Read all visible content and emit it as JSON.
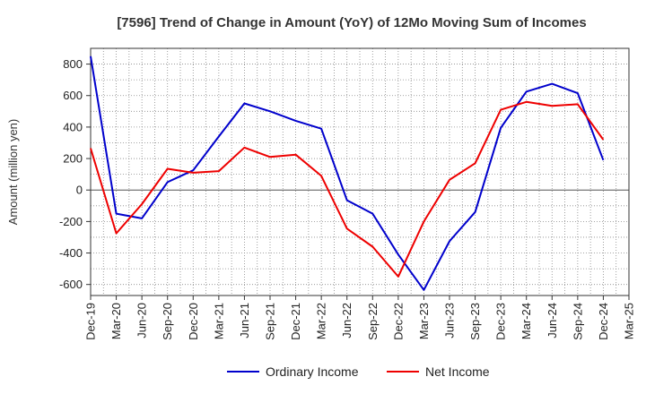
{
  "chart_data": {
    "type": "line",
    "title": "[7596]  Trend of Change in Amount (YoY) of 12Mo Moving Sum of Incomes",
    "xlabel": "",
    "ylabel": "Amount (million yen)",
    "ylim": [
      -670,
      900
    ],
    "yticks": [
      -600,
      -400,
      -200,
      0,
      200,
      400,
      600,
      800
    ],
    "ytick_labels": [
      "-600",
      "-400",
      "-200",
      "0",
      "200",
      "400",
      "600",
      "800"
    ],
    "categories": [
      "Dec-19",
      "Mar-20",
      "Jun-20",
      "Sep-20",
      "Dec-20",
      "Mar-21",
      "Jun-21",
      "Sep-21",
      "Dec-21",
      "Mar-22",
      "Jun-22",
      "Sep-22",
      "Dec-22",
      "Mar-23",
      "Jun-23",
      "Sep-23",
      "Dec-23",
      "Mar-24",
      "Jun-24",
      "Sep-24",
      "Dec-24",
      "Mar-25"
    ],
    "grid": true,
    "legend_position": "bottom-center",
    "series": [
      {
        "name": "Ordinary Income",
        "color": "#0000cc",
        "values": [
          850,
          -150,
          -180,
          50,
          125,
          340,
          550,
          500,
          440,
          390,
          -65,
          -150,
          -410,
          -635,
          -325,
          -140,
          395,
          625,
          675,
          615,
          190,
          null
        ]
      },
      {
        "name": "Net Income",
        "color": "#ee0000",
        "values": [
          265,
          -275,
          -90,
          135,
          110,
          120,
          270,
          210,
          225,
          90,
          -245,
          -360,
          -550,
          -200,
          65,
          170,
          510,
          560,
          535,
          545,
          320,
          null
        ]
      }
    ]
  }
}
